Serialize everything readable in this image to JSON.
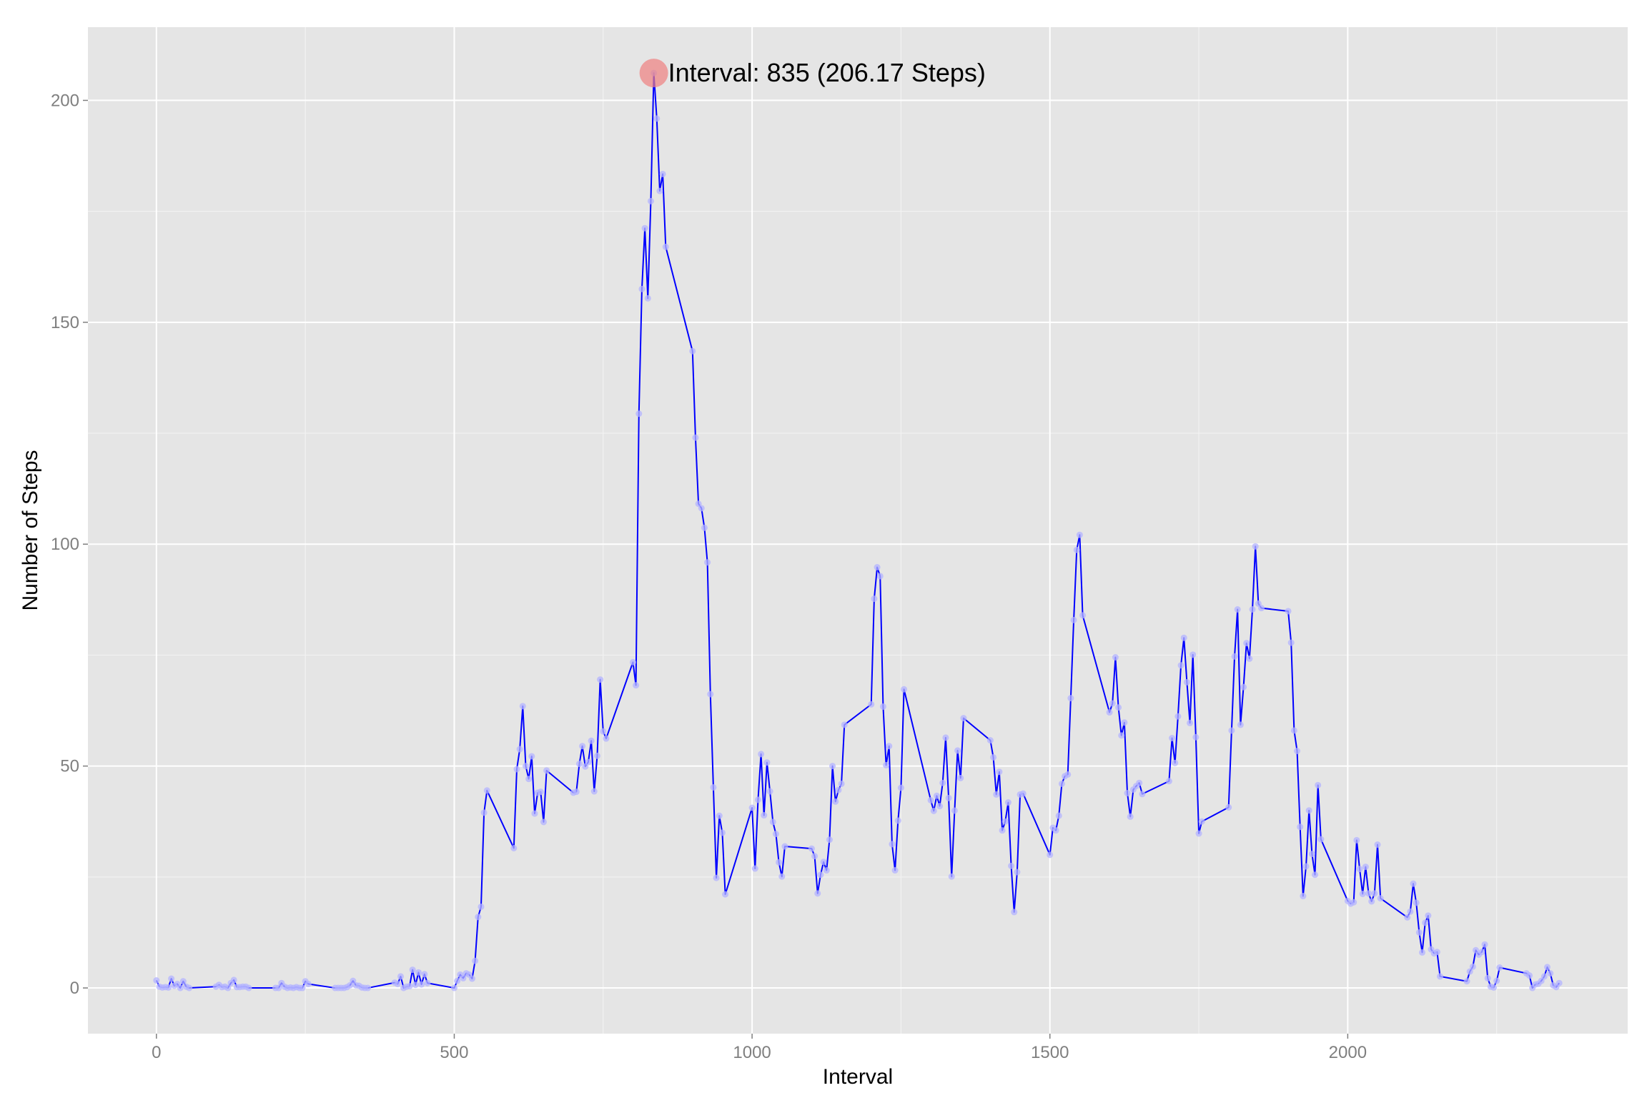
{
  "chart_data": {
    "type": "line",
    "title": "",
    "xlabel": "Interval",
    "ylabel": "Number of Steps",
    "xlim": [
      -115,
      2470
    ],
    "ylim": [
      -10.3,
      216.5
    ],
    "xticks": [
      0,
      500,
      1000,
      1500,
      2000
    ],
    "yticks": [
      0,
      50,
      100,
      150,
      200
    ],
    "xtick_labels": [
      "0",
      "500",
      "1000",
      "1500",
      "2000"
    ],
    "ytick_labels": [
      "0",
      "50",
      "100",
      "150",
      "200"
    ],
    "grid": true,
    "colors": {
      "panel": "#e5e5e5",
      "grid_major": "#ffffff",
      "grid_minor": "#f2f2f2",
      "line": "#0000ff",
      "point": "#b3b3ff",
      "highlight": "#f08080"
    },
    "series": [
      {
        "points": [
          [
            0,
            1.7
          ],
          [
            5,
            0.3
          ],
          [
            10,
            0.1
          ],
          [
            15,
            0.2
          ],
          [
            20,
            0.1
          ],
          [
            25,
            2.1
          ],
          [
            30,
            0.5
          ],
          [
            35,
            0.9
          ],
          [
            40,
            0
          ],
          [
            45,
            1.5
          ],
          [
            50,
            0.3
          ],
          [
            55,
            0
          ],
          [
            100,
            0.3
          ],
          [
            105,
            0.7
          ],
          [
            110,
            0.2
          ],
          [
            115,
            0.3
          ],
          [
            120,
            0
          ],
          [
            125,
            1.1
          ],
          [
            130,
            1.8
          ],
          [
            135,
            0.2
          ],
          [
            140,
            0.2
          ],
          [
            145,
            0.3
          ],
          [
            150,
            0.3
          ],
          [
            155,
            0
          ],
          [
            200,
            0
          ],
          [
            205,
            0
          ],
          [
            210,
            1.1
          ],
          [
            215,
            0.3
          ],
          [
            220,
            0
          ],
          [
            225,
            0.1
          ],
          [
            230,
            0
          ],
          [
            235,
            0.2
          ],
          [
            240,
            0
          ],
          [
            245,
            0
          ],
          [
            250,
            1.5
          ],
          [
            255,
            0.9
          ],
          [
            300,
            0
          ],
          [
            305,
            0
          ],
          [
            310,
            0
          ],
          [
            315,
            0
          ],
          [
            320,
            0.2
          ],
          [
            325,
            0.6
          ],
          [
            330,
            1.6
          ],
          [
            335,
            0.6
          ],
          [
            340,
            0.5
          ],
          [
            345,
            0.1
          ],
          [
            350,
            0
          ],
          [
            355,
            0
          ],
          [
            400,
            1.2
          ],
          [
            405,
            0.9
          ],
          [
            410,
            2.6
          ],
          [
            415,
            0
          ],
          [
            420,
            0.3
          ],
          [
            425,
            0.4
          ],
          [
            430,
            4.1
          ],
          [
            435,
            0.7
          ],
          [
            440,
            3.5
          ],
          [
            445,
            0.8
          ],
          [
            450,
            3.1
          ],
          [
            455,
            1.1
          ],
          [
            500,
            0
          ],
          [
            505,
            1.6
          ],
          [
            510,
            3
          ],
          [
            515,
            2.2
          ],
          [
            520,
            3.3
          ],
          [
            525,
            3
          ],
          [
            530,
            2.1
          ],
          [
            535,
            6.1
          ],
          [
            540,
            16
          ],
          [
            545,
            18.3
          ],
          [
            550,
            39.5
          ],
          [
            555,
            44.5
          ],
          [
            600,
            31.5
          ],
          [
            605,
            49.3
          ],
          [
            610,
            53.8
          ],
          [
            615,
            63.5
          ],
          [
            620,
            50
          ],
          [
            625,
            47.1
          ],
          [
            630,
            52.2
          ],
          [
            635,
            39.3
          ],
          [
            640,
            44
          ],
          [
            645,
            44.2
          ],
          [
            650,
            37.4
          ],
          [
            655,
            49
          ],
          [
            700,
            44
          ],
          [
            705,
            44.2
          ],
          [
            710,
            50.5
          ],
          [
            715,
            54.5
          ],
          [
            720,
            49.9
          ],
          [
            725,
            50.9
          ],
          [
            730,
            55.7
          ],
          [
            735,
            44.3
          ],
          [
            740,
            52.3
          ],
          [
            745,
            69.5
          ],
          [
            750,
            57.8
          ],
          [
            755,
            56.2
          ],
          [
            800,
            73.4
          ],
          [
            805,
            68.2
          ],
          [
            810,
            129.4
          ],
          [
            815,
            157.5
          ],
          [
            820,
            171.2
          ],
          [
            825,
            155.4
          ],
          [
            830,
            177.3
          ],
          [
            835,
            206.17
          ],
          [
            840,
            195.9
          ],
          [
            845,
            179.6
          ],
          [
            850,
            183.4
          ],
          [
            855,
            167
          ],
          [
            900,
            143.5
          ],
          [
            905,
            124
          ],
          [
            910,
            109.1
          ],
          [
            915,
            108.1
          ],
          [
            920,
            103.7
          ],
          [
            925,
            95.9
          ],
          [
            930,
            66.2
          ],
          [
            935,
            45.2
          ],
          [
            940,
            24.8
          ],
          [
            945,
            38.8
          ],
          [
            950,
            34.98
          ],
          [
            955,
            21.1
          ],
          [
            1000,
            40.6
          ],
          [
            1005,
            26.9
          ],
          [
            1010,
            42.4
          ],
          [
            1015,
            52.7
          ],
          [
            1020,
            38.9
          ],
          [
            1025,
            50.8
          ],
          [
            1030,
            44.3
          ],
          [
            1035,
            37.4
          ],
          [
            1040,
            34.7
          ],
          [
            1045,
            28.3
          ],
          [
            1050,
            25.1
          ],
          [
            1055,
            31.9
          ],
          [
            1100,
            31.4
          ],
          [
            1105,
            29.7
          ],
          [
            1110,
            21.3
          ],
          [
            1115,
            25.5
          ],
          [
            1120,
            28.4
          ],
          [
            1125,
            26.5
          ],
          [
            1130,
            33.4
          ],
          [
            1135,
            50
          ],
          [
            1140,
            42
          ],
          [
            1145,
            44.6
          ],
          [
            1150,
            46
          ],
          [
            1155,
            59.3
          ],
          [
            1200,
            63.9
          ],
          [
            1205,
            87.7
          ],
          [
            1210,
            94.8
          ],
          [
            1215,
            92.8
          ],
          [
            1220,
            63.4
          ],
          [
            1225,
            50.2
          ],
          [
            1230,
            54.5
          ],
          [
            1235,
            32.4
          ],
          [
            1240,
            26.5
          ],
          [
            1245,
            37.7
          ],
          [
            1250,
            45.1
          ],
          [
            1255,
            67.3
          ],
          [
            1300,
            42.3
          ],
          [
            1305,
            39.9
          ],
          [
            1310,
            43.3
          ],
          [
            1315,
            40.98
          ],
          [
            1320,
            46.2
          ],
          [
            1325,
            56.4
          ],
          [
            1330,
            42.8
          ],
          [
            1335,
            25.1
          ],
          [
            1340,
            39.96
          ],
          [
            1345,
            53.5
          ],
          [
            1350,
            47.3
          ],
          [
            1355,
            60.8
          ],
          [
            1400,
            55.8
          ],
          [
            1405,
            51.96
          ],
          [
            1410,
            43.6
          ],
          [
            1415,
            48.7
          ],
          [
            1420,
            35.5
          ],
          [
            1425,
            37.5
          ],
          [
            1430,
            41.8
          ],
          [
            1435,
            27.5
          ],
          [
            1440,
            17.1
          ],
          [
            1445,
            26.1
          ],
          [
            1450,
            43.6
          ],
          [
            1455,
            43.8
          ],
          [
            1500,
            30
          ],
          [
            1505,
            36.1
          ],
          [
            1510,
            35.5
          ],
          [
            1515,
            38.8
          ],
          [
            1520,
            46
          ],
          [
            1525,
            47.7
          ],
          [
            1530,
            48.1
          ],
          [
            1535,
            65.3
          ],
          [
            1540,
            82.9
          ],
          [
            1545,
            98.7
          ],
          [
            1550,
            102.1
          ],
          [
            1555,
            83.96
          ],
          [
            1600,
            62.1
          ],
          [
            1605,
            64.1
          ],
          [
            1610,
            74.5
          ],
          [
            1615,
            63.2
          ],
          [
            1620,
            56.9
          ],
          [
            1625,
            59.8
          ],
          [
            1630,
            43.9
          ],
          [
            1635,
            38.6
          ],
          [
            1640,
            44.7
          ],
          [
            1645,
            45.5
          ],
          [
            1650,
            46.2
          ],
          [
            1655,
            43.7
          ],
          [
            1700,
            46.6
          ],
          [
            1705,
            56.3
          ],
          [
            1710,
            50.7
          ],
          [
            1715,
            61.2
          ],
          [
            1720,
            72.7
          ],
          [
            1725,
            78.9
          ],
          [
            1730,
            68.9
          ],
          [
            1735,
            59.7
          ],
          [
            1740,
            75.1
          ],
          [
            1745,
            56.5
          ],
          [
            1750,
            34.8
          ],
          [
            1755,
            37.5
          ],
          [
            1800,
            40.7
          ],
          [
            1805,
            58
          ],
          [
            1810,
            74.7
          ],
          [
            1815,
            85.3
          ],
          [
            1820,
            59.3
          ],
          [
            1825,
            67.8
          ],
          [
            1830,
            77.7
          ],
          [
            1835,
            74.2
          ],
          [
            1840,
            85.3
          ],
          [
            1845,
            99.5
          ],
          [
            1850,
            86.6
          ],
          [
            1855,
            85.6
          ],
          [
            1900,
            84.9
          ],
          [
            1905,
            77.8
          ],
          [
            1910,
            58
          ],
          [
            1915,
            53.4
          ],
          [
            1920,
            36.3
          ],
          [
            1925,
            20.7
          ],
          [
            1930,
            27.4
          ],
          [
            1935,
            40
          ],
          [
            1940,
            30.2
          ],
          [
            1945,
            25.5
          ],
          [
            1950,
            45.7
          ],
          [
            1955,
            33.5
          ],
          [
            2000,
            19.6
          ],
          [
            2005,
            19
          ],
          [
            2010,
            19.3
          ],
          [
            2015,
            33.3
          ],
          [
            2020,
            26.8
          ],
          [
            2025,
            21.2
          ],
          [
            2030,
            27.3
          ],
          [
            2035,
            21.3
          ],
          [
            2040,
            19.5
          ],
          [
            2045,
            21.3
          ],
          [
            2050,
            32.3
          ],
          [
            2055,
            20.2
          ],
          [
            2100,
            15.9
          ],
          [
            2105,
            17.2
          ],
          [
            2110,
            23.5
          ],
          [
            2115,
            19.2
          ],
          [
            2120,
            12.5
          ],
          [
            2125,
            8
          ],
          [
            2130,
            14.7
          ],
          [
            2135,
            16.3
          ],
          [
            2140,
            8.7
          ],
          [
            2145,
            7.8
          ],
          [
            2150,
            8.1
          ],
          [
            2155,
            2.6
          ],
          [
            2200,
            1.5
          ],
          [
            2205,
            3.7
          ],
          [
            2210,
            4.8
          ],
          [
            2215,
            8.5
          ],
          [
            2220,
            7.5
          ],
          [
            2225,
            8.1
          ],
          [
            2230,
            9.8
          ],
          [
            2235,
            2.2
          ],
          [
            2240,
            0.3
          ],
          [
            2245,
            0.1
          ],
          [
            2250,
            1.6
          ],
          [
            2255,
            4.6
          ],
          [
            2300,
            3.3
          ],
          [
            2305,
            2.8
          ],
          [
            2310,
            0
          ],
          [
            2315,
            0.8
          ],
          [
            2320,
            0.96
          ],
          [
            2325,
            1.6
          ],
          [
            2330,
            2.6
          ],
          [
            2335,
            4.7
          ],
          [
            2340,
            3.3
          ],
          [
            2345,
            0.6
          ],
          [
            2350,
            0.2
          ],
          [
            2355,
            1.1
          ]
        ]
      }
    ],
    "annotations": [
      {
        "x": 835,
        "y": 206.17,
        "text": "Interval: 835 (206.17 Steps)"
      }
    ]
  }
}
